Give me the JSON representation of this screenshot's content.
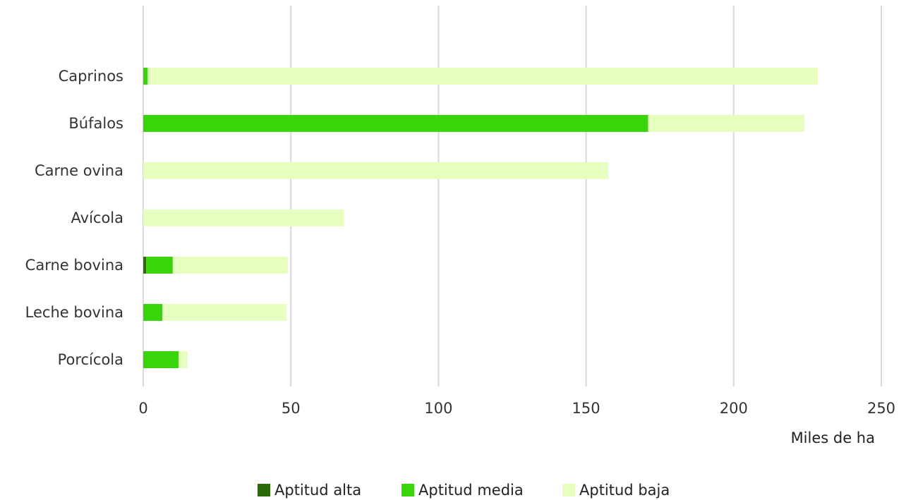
{
  "chart_data": {
    "type": "bar",
    "orientation": "horizontal",
    "stacked": true,
    "categories": [
      "Caprinos",
      "Búfalos",
      "Carne ovina",
      "Avícola",
      "Carne bovina",
      "Leche bovina",
      "Porcícola"
    ],
    "series": [
      {
        "name": "Aptitud alta",
        "color": "#2d6a0a",
        "values": [
          0,
          0,
          0,
          0,
          1,
          0,
          0
        ]
      },
      {
        "name": "Aptitud media",
        "color": "#3ad40a",
        "values": [
          1.5,
          171,
          0,
          0,
          9,
          6.5,
          12
        ]
      },
      {
        "name": "Aptitud baja",
        "color": "#e6ffbf",
        "values": [
          227,
          53,
          157.5,
          68,
          39,
          42,
          3
        ]
      }
    ],
    "xlim": [
      0,
      250
    ],
    "xticks": [
      "0",
      "50",
      "100",
      "150",
      "200",
      "250"
    ],
    "xlabel": "Miles de ha",
    "grid": true,
    "legend_position": "bottom"
  }
}
